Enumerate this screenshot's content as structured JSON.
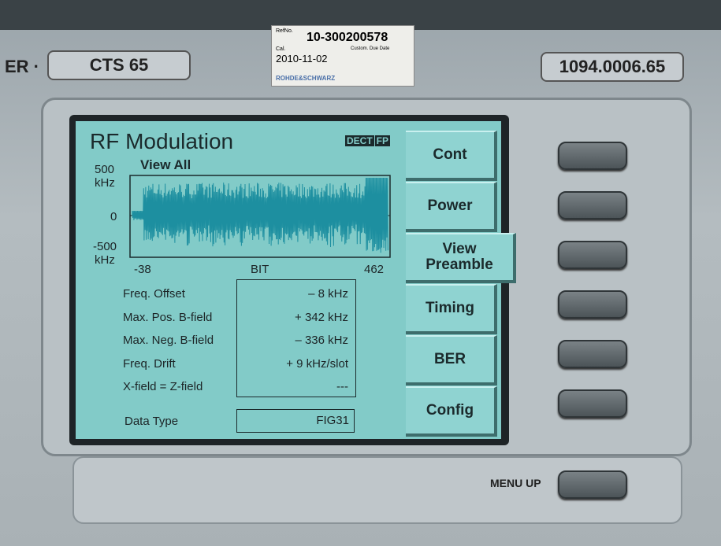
{
  "device": {
    "label_left": "ER ·",
    "model": "CTS 65",
    "part_number": "1094.0006.65",
    "menu_up": "MENU UP"
  },
  "sticker": {
    "ref_label": "RefNo.",
    "ref_no": "10-300200578",
    "cal_label": "Cal.",
    "cal_date": "2010-11-02",
    "due_label": "Custom. Due Date",
    "brand": "ROHDE&SCHWARZ"
  },
  "screen": {
    "title": "RF Modulation",
    "mode": [
      "DECT",
      "FP"
    ],
    "subtitle": "View All",
    "plot": {
      "y_labels": [
        "500",
        "kHz",
        "0",
        "-500",
        "kHz"
      ],
      "x_labels": [
        "-38",
        "BIT",
        "462"
      ]
    },
    "measurements": [
      {
        "label": "Freq. Offset",
        "value": "– 8 kHz"
      },
      {
        "label": "Max. Pos. B-field",
        "value": "+ 342 kHz"
      },
      {
        "label": "Max. Neg. B-field",
        "value": "– 336 kHz"
      },
      {
        "label": "Freq. Drift",
        "value": "+ 9 kHz/slot"
      },
      {
        "label": "X-field = Z-field",
        "value": "---"
      }
    ],
    "data_type": {
      "label": "Data Type",
      "value": "FIG31"
    },
    "softkeys": [
      "Cont",
      "Power",
      "View Preamble",
      "Timing",
      "BER",
      "Config"
    ]
  }
}
